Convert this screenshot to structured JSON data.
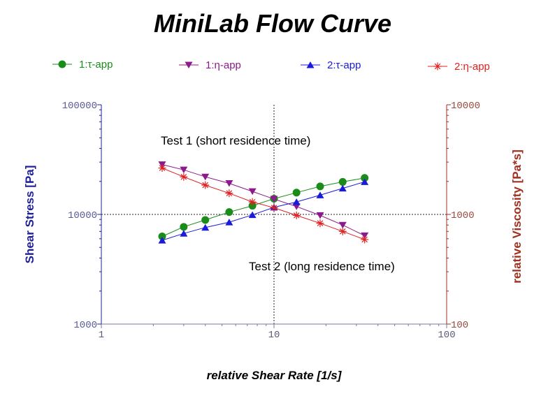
{
  "chart_data": {
    "type": "line",
    "title": "MiniLab Flow Curve",
    "xlabel": "relative Shear Rate [1/s]",
    "ylabel": "Shear Stress [Pa]",
    "y2label": "relative Viscosity [Pa*s]",
    "xscale": "log",
    "yscale": "log",
    "xlim": [
      1,
      100
    ],
    "ylim": [
      1000,
      100000
    ],
    "y2lim": [
      100,
      10000
    ],
    "xticks": [
      "1",
      "10",
      "100"
    ],
    "yticks": [
      "1000",
      "10000",
      "100000"
    ],
    "y2ticks": [
      "100",
      "1000",
      "10000"
    ],
    "reference_lines": {
      "x": 10,
      "y": 10000
    },
    "annotations": [
      {
        "text": "Test 1 (short residence time)",
        "x": 3.4,
        "y": 33000
      },
      {
        "text": "Test 2 (long residence time)",
        "x": 8.6,
        "y": 3400
      }
    ],
    "series": [
      {
        "name": "1:τ-app",
        "axis": "left",
        "color": "#1a8c1a",
        "marker": "circle",
        "x": [
          2.25,
          3.0,
          4.0,
          5.5,
          7.5,
          10.0,
          13.5,
          18.5,
          25.0,
          33.5
        ],
        "values": [
          6300,
          7700,
          8900,
          10500,
          12000,
          13900,
          15800,
          18000,
          19800,
          21500
        ]
      },
      {
        "name": "1:η-app",
        "axis": "right",
        "color": "#8b1a8b",
        "marker": "triangle-down",
        "x": [
          2.25,
          3.0,
          4.0,
          5.5,
          7.5,
          10.0,
          13.5,
          18.5,
          25.0,
          33.5
        ],
        "values": [
          2850,
          2550,
          2200,
          1920,
          1620,
          1380,
          1180,
          980,
          800,
          640
        ]
      },
      {
        "name": "2:τ-app",
        "axis": "left",
        "color": "#1a1ad9",
        "marker": "triangle-up",
        "x": [
          2.25,
          3.0,
          4.0,
          5.5,
          7.5,
          10.0,
          13.5,
          18.5,
          25.0,
          33.5
        ],
        "values": [
          5800,
          6700,
          7600,
          8500,
          9900,
          11600,
          13000,
          15000,
          17300,
          19800
        ]
      },
      {
        "name": "2:η-app",
        "axis": "right",
        "color": "#e02020",
        "marker": "star",
        "x": [
          2.25,
          3.0,
          4.0,
          5.5,
          7.5,
          10.0,
          13.5,
          18.5,
          25.0,
          33.5
        ],
        "values": [
          2650,
          2200,
          1850,
          1560,
          1300,
          1150,
          980,
          830,
          700,
          590
        ]
      }
    ]
  },
  "colors": {
    "left_axis": "#1f1f99",
    "right_axis": "#a03020",
    "tick_left": "#5a5a9a",
    "tick_right": "#9a4a3a",
    "reference": "#222233"
  }
}
